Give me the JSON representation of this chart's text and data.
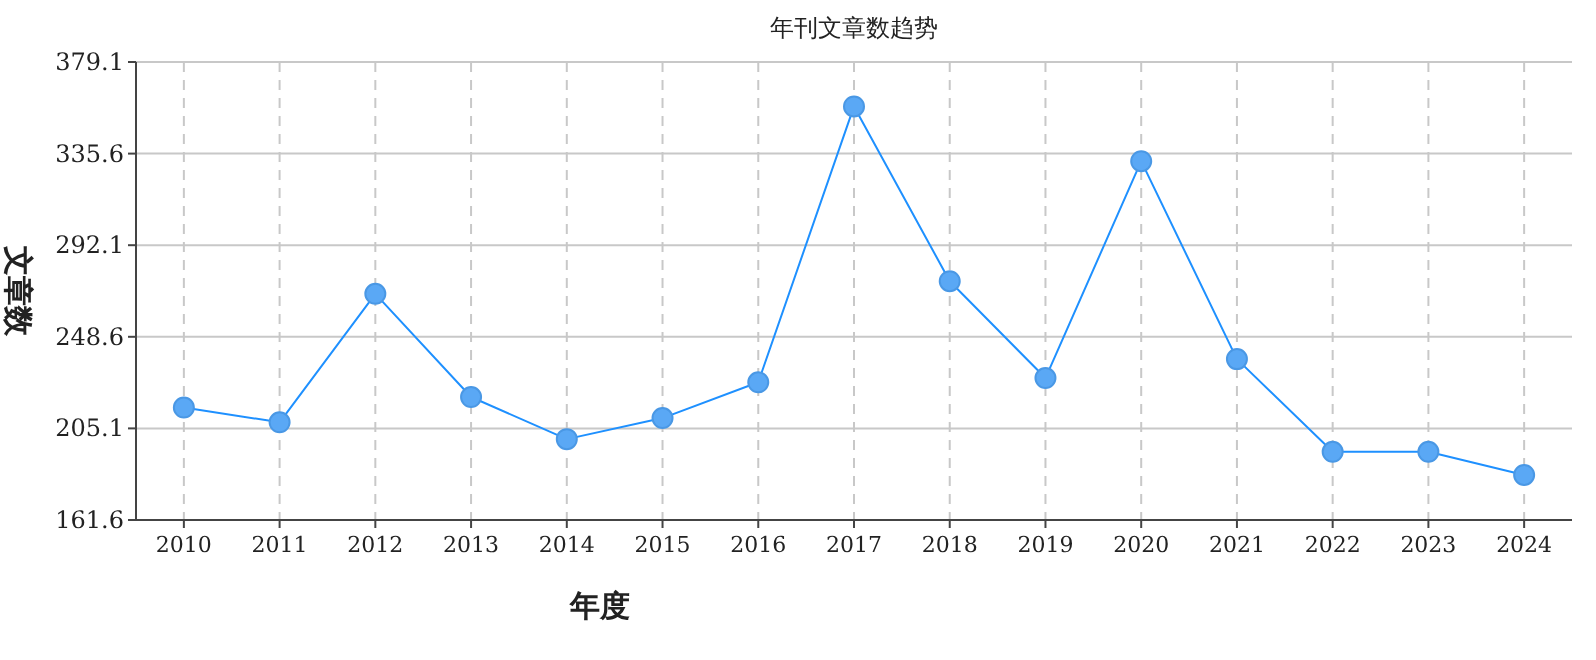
{
  "chart_data": {
    "type": "line",
    "title": "年刊文章数趋势",
    "xlabel": "年度",
    "ylabel": "文章数",
    "categories": [
      "2010",
      "2011",
      "2012",
      "2013",
      "2014",
      "2015",
      "2016",
      "2017",
      "2018",
      "2019",
      "2020",
      "2021",
      "2022",
      "2023",
      "2024"
    ],
    "series": [
      {
        "color": "#1e90ff",
        "values": [
          215,
          208,
          269,
          220,
          200,
          210,
          227,
          358,
          275,
          229,
          332,
          238,
          194,
          194,
          183
        ]
      }
    ],
    "ylim": [
      161.6,
      379.1
    ],
    "yticks": [
      161.6,
      205.1,
      248.6,
      292.1,
      335.6,
      379.1
    ],
    "grid": true,
    "marker": "circle",
    "line_style": "solid"
  }
}
